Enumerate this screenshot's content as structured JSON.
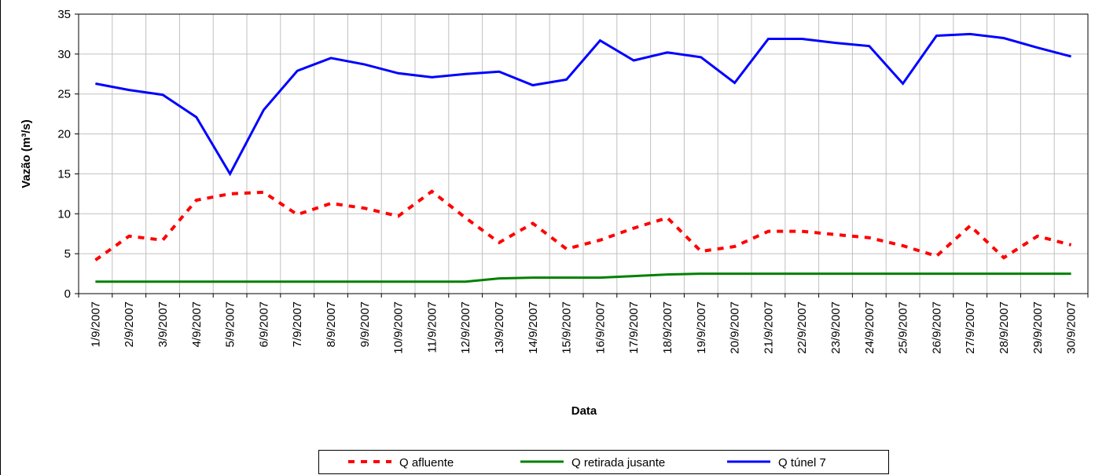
{
  "chart_data": {
    "type": "line",
    "x_label": "Data",
    "y_label": "Vazão (m³/s)",
    "categories": [
      "1/9/2007",
      "2/9/2007",
      "3/9/2007",
      "4/9/2007",
      "5/9/2007",
      "6/9/2007",
      "7/9/2007",
      "8/9/2007",
      "9/9/2007",
      "10/9/2007",
      "11/9/2007",
      "12/9/2007",
      "13/9/2007",
      "14/9/2007",
      "15/9/2007",
      "16/9/2007",
      "17/9/2007",
      "18/9/2007",
      "19/9/2007",
      "20/9/2007",
      "21/9/2007",
      "22/9/2007",
      "23/9/2007",
      "24/9/2007",
      "25/9/2007",
      "26/9/2007",
      "27/9/2007",
      "28/9/2007",
      "29/9/2007",
      "30/9/2007"
    ],
    "series": [
      {
        "name": "Q afluente",
        "color": "#ff0000",
        "dash": true,
        "values": [
          4.2,
          7.2,
          6.7,
          11.7,
          12.5,
          12.7,
          9.9,
          11.3,
          10.7,
          9.7,
          12.8,
          9.5,
          6.4,
          8.8,
          5.6,
          6.7,
          8.2,
          9.5,
          5.3,
          5.9,
          7.8,
          7.8,
          7.4,
          7.0,
          6.0,
          4.7,
          8.5,
          4.5,
          7.2,
          6.1
        ]
      },
      {
        "name": "Q retirada jusante",
        "color": "#008000",
        "dash": false,
        "values": [
          1.5,
          1.5,
          1.5,
          1.5,
          1.5,
          1.5,
          1.5,
          1.5,
          1.5,
          1.5,
          1.5,
          1.5,
          1.9,
          2.0,
          2.0,
          2.0,
          2.2,
          2.4,
          2.5,
          2.5,
          2.5,
          2.5,
          2.5,
          2.5,
          2.5,
          2.5,
          2.5,
          2.5,
          2.5,
          2.5
        ]
      },
      {
        "name": "Q túnel 7",
        "color": "#0000ff",
        "dash": false,
        "values": [
          26.3,
          25.5,
          24.9,
          22.1,
          15.0,
          23.0,
          27.9,
          29.5,
          28.7,
          27.6,
          27.1,
          27.5,
          27.8,
          26.1,
          26.8,
          31.7,
          29.2,
          30.2,
          29.6,
          26.4,
          31.9,
          31.9,
          31.4,
          31.0,
          26.3,
          32.3,
          32.5,
          32.0,
          30.8,
          29.7
        ]
      }
    ],
    "ylim": [
      0,
      35
    ],
    "yticks": [
      0,
      5,
      10,
      15,
      20,
      25,
      30,
      35
    ],
    "grid": true
  }
}
